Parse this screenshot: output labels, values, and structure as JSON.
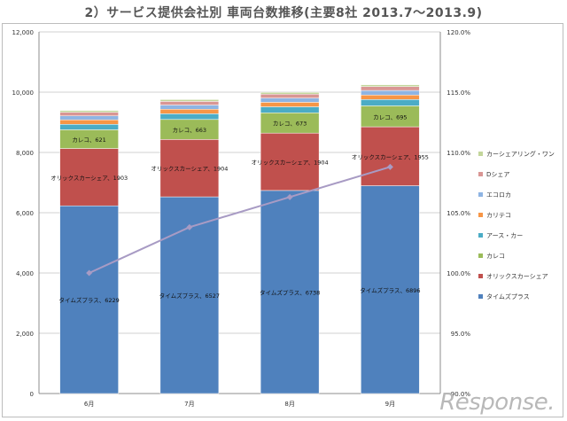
{
  "title": "2）サービス提供会社別 車両台数推移(主要8社 2013.7〜2013.9)",
  "watermark": "Response.",
  "colors": {
    "タイムズプラス": "#4f81bd",
    "オリックスカーシェア": "#c0504d",
    "カレコ": "#9bbb59",
    "アース・カー": "#4bacc6",
    "カリテコ": "#f79646",
    "エコロカ": "#8eb4e3",
    "Dシェア": "#d99694",
    "カーシェアリング・ワン": "#c3d69b",
    "line": "#a89bc4"
  },
  "chart_data": {
    "type": "bar",
    "stacked": true,
    "categories": [
      "6月",
      "7月",
      "8月",
      "9月"
    ],
    "series": [
      {
        "name": "タイムズプラス",
        "values": [
          6229,
          6527,
          6738,
          6896
        ]
      },
      {
        "name": "オリックスカーシェア",
        "values": [
          1903,
          1904,
          1904,
          1955
        ]
      },
      {
        "name": "カレコ",
        "values": [
          621,
          663,
          673,
          695
        ]
      },
      {
        "name": "アース・カー",
        "values": [
          180,
          190,
          200,
          210
        ]
      },
      {
        "name": "カリテコ",
        "values": [
          150,
          150,
          150,
          150
        ]
      },
      {
        "name": "エコロカ",
        "values": [
          130,
          140,
          140,
          150
        ]
      },
      {
        "name": "Dシェア",
        "values": [
          120,
          120,
          130,
          130
        ]
      },
      {
        "name": "カーシェアリング・ワン",
        "values": [
          60,
          60,
          60,
          60
        ]
      }
    ],
    "data_labels": [
      [
        "タイムズプラス、6229",
        "タイムズプラス、6527",
        "タイムズプラス、6738",
        "タイムズプラス、6896"
      ],
      [
        "オリックスカーシェア、1903",
        "オリックスカーシェア、1904",
        "オリックスカーシェア、1904",
        "オリックスカーシェア、1955"
      ],
      [
        "カレコ、621",
        "カレコ、663",
        "カレコ、673",
        "カレコ、695"
      ]
    ],
    "line": {
      "axis": "right",
      "values": [
        100.0,
        103.8,
        106.3,
        108.8
      ]
    },
    "y_left": {
      "ylim": [
        0,
        12000
      ],
      "ticks": [
        "0",
        "2,000",
        "4,000",
        "6,000",
        "8,000",
        "10,000",
        "12,000"
      ]
    },
    "y_right": {
      "ylim": [
        90,
        120
      ],
      "ticks": [
        "90.0%",
        "95.0%",
        "100.0%",
        "105.0%",
        "110.0%",
        "115.0%",
        "120.0%"
      ]
    },
    "legend": [
      "カーシェアリング・ワン",
      "Dシェア",
      "エコロカ",
      "カリテコ",
      "アース・カー",
      "カレコ",
      "オリックスカーシェア",
      "タイムズプラス"
    ],
    "legend_position": "right",
    "grid": true
  }
}
